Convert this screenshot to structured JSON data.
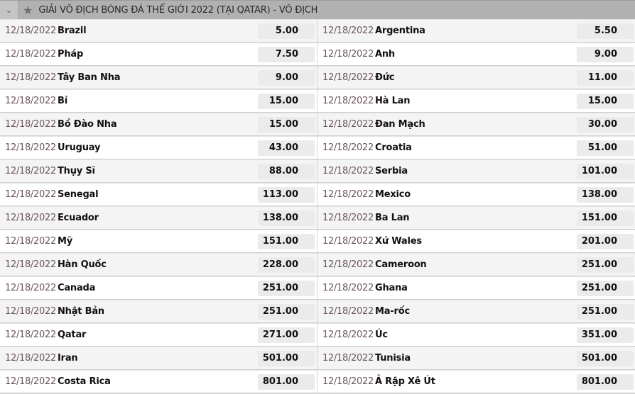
{
  "header": {
    "title": "GIẢI VÔ ĐỊCH BÓNG ĐÁ THẾ GIỚI 2022 (TẠI QATAR) - VÔ ĐỊCH",
    "toggle_icon": "chevron-down-icon",
    "favorite_icon": "star-icon"
  },
  "rows": [
    {
      "left": {
        "date": "12/18/2022",
        "team": "Brazil",
        "odds": "5.00"
      },
      "right": {
        "date": "12/18/2022",
        "team": "Argentina",
        "odds": "5.50"
      }
    },
    {
      "left": {
        "date": "12/18/2022",
        "team": "Pháp",
        "odds": "7.50"
      },
      "right": {
        "date": "12/18/2022",
        "team": "Anh",
        "odds": "9.00"
      }
    },
    {
      "left": {
        "date": "12/18/2022",
        "team": "Tây Ban Nha",
        "odds": "9.00"
      },
      "right": {
        "date": "12/18/2022",
        "team": "Đức",
        "odds": "11.00"
      }
    },
    {
      "left": {
        "date": "12/18/2022",
        "team": "Bỉ",
        "odds": "15.00"
      },
      "right": {
        "date": "12/18/2022",
        "team": "Hà Lan",
        "odds": "15.00"
      }
    },
    {
      "left": {
        "date": "12/18/2022",
        "team": "Bồ Đào Nha",
        "odds": "15.00"
      },
      "right": {
        "date": "12/18/2022",
        "team": "Đan Mạch",
        "odds": "30.00"
      }
    },
    {
      "left": {
        "date": "12/18/2022",
        "team": "Uruguay",
        "odds": "43.00"
      },
      "right": {
        "date": "12/18/2022",
        "team": "Croatia",
        "odds": "51.00"
      }
    },
    {
      "left": {
        "date": "12/18/2022",
        "team": "Thụy Sĩ",
        "odds": "88.00"
      },
      "right": {
        "date": "12/18/2022",
        "team": "Serbia",
        "odds": "101.00"
      }
    },
    {
      "left": {
        "date": "12/18/2022",
        "team": "Senegal",
        "odds": "113.00"
      },
      "right": {
        "date": "12/18/2022",
        "team": "Mexico",
        "odds": "138.00"
      }
    },
    {
      "left": {
        "date": "12/18/2022",
        "team": "Ecuador",
        "odds": "138.00"
      },
      "right": {
        "date": "12/18/2022",
        "team": "Ba Lan",
        "odds": "151.00"
      }
    },
    {
      "left": {
        "date": "12/18/2022",
        "team": "Mỹ",
        "odds": "151.00"
      },
      "right": {
        "date": "12/18/2022",
        "team": "Xứ Wales",
        "odds": "201.00"
      }
    },
    {
      "left": {
        "date": "12/18/2022",
        "team": "Hàn Quốc",
        "odds": "228.00"
      },
      "right": {
        "date": "12/18/2022",
        "team": "Cameroon",
        "odds": "251.00"
      }
    },
    {
      "left": {
        "date": "12/18/2022",
        "team": "Canada",
        "odds": "251.00"
      },
      "right": {
        "date": "12/18/2022",
        "team": "Ghana",
        "odds": "251.00"
      }
    },
    {
      "left": {
        "date": "12/18/2022",
        "team": "Nhật Bản",
        "odds": "251.00"
      },
      "right": {
        "date": "12/18/2022",
        "team": "Ma-rốc",
        "odds": "251.00"
      }
    },
    {
      "left": {
        "date": "12/18/2022",
        "team": "Qatar",
        "odds": "271.00"
      },
      "right": {
        "date": "12/18/2022",
        "team": "Úc",
        "odds": "351.00"
      }
    },
    {
      "left": {
        "date": "12/18/2022",
        "team": "Iran",
        "odds": "501.00"
      },
      "right": {
        "date": "12/18/2022",
        "team": "Tunisia",
        "odds": "501.00"
      }
    },
    {
      "left": {
        "date": "12/18/2022",
        "team": "Costa Rica",
        "odds": "801.00"
      },
      "right": {
        "date": "12/18/2022",
        "team": "Ả Rập Xê Út",
        "odds": "801.00"
      }
    }
  ]
}
